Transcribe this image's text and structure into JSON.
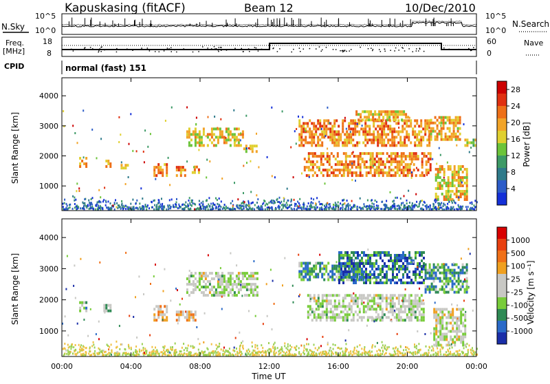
{
  "header": {
    "station": "Kapuskasing (fitACF)",
    "beam": "Beam 12",
    "date": "10/Dec/2010",
    "cpid_label": "CPID",
    "cpid_value": "normal (fast) 151"
  },
  "noise_panel": {
    "left_label": "N.Sky",
    "right_label": "N.Search",
    "left_ticks": [
      "10^5",
      "10^0"
    ],
    "right_ticks": [
      "10^5",
      "10^0"
    ]
  },
  "freq_panel": {
    "left_label_1": "Freq.",
    "left_label_2": "[MHz]",
    "right_label": "Nave",
    "left_ticks": [
      "18",
      "8"
    ],
    "right_ticks": [
      "60",
      "0"
    ]
  },
  "colors": {
    "power_scale": [
      "#1430d8",
      "#2c5cc8",
      "#2e7a8a",
      "#3d9a66",
      "#6cc43a",
      "#e0d030",
      "#f2a428",
      "#ee7018",
      "#e03010",
      "#cc0000"
    ],
    "velocity_scale": [
      "#1a2ea8",
      "#2a6ac8",
      "#2e8a54",
      "#78cc3a",
      "#c8c8c4",
      "#c8c8c4",
      "#f0a020",
      "#f07018",
      "#e84010",
      "#d80000"
    ]
  },
  "chart_data": [
    {
      "type": "heatmap",
      "title": "Power",
      "ylabel": "Slant Range [km]",
      "xlabel": "",
      "xlim": [
        "00:00",
        "00:00"
      ],
      "ylim": [
        180,
        4600
      ],
      "yticks": [
        "1000",
        "2000",
        "3000",
        "4000"
      ],
      "colorbar_label": "Power [dB]",
      "colorbar_ticks": [
        "4",
        "8",
        "12",
        "16",
        "20",
        "24",
        "28"
      ],
      "colorbar_range": [
        0,
        30
      ],
      "regions": [
        {
          "t0": 1.0,
          "t1": 1.4,
          "r0": 1600,
          "r1": 1950,
          "level": 0.45
        },
        {
          "t0": 2.4,
          "t1": 2.8,
          "r0": 1600,
          "r1": 1800,
          "level": 0.45
        },
        {
          "t0": 3.4,
          "t1": 3.8,
          "r0": 1550,
          "r1": 1700,
          "level": 0.4
        },
        {
          "t0": 5.3,
          "t1": 6.1,
          "r0": 1300,
          "r1": 1750,
          "level": 0.6
        },
        {
          "t0": 6.6,
          "t1": 7.1,
          "r0": 1300,
          "r1": 1650,
          "level": 0.5
        },
        {
          "t0": 7.4,
          "t1": 7.9,
          "r0": 1400,
          "r1": 1600,
          "level": 0.5
        },
        {
          "t0": 7.2,
          "t1": 10.5,
          "r0": 2300,
          "r1": 2850,
          "level": 0.3
        },
        {
          "t0": 10.5,
          "t1": 11.3,
          "r0": 2100,
          "r1": 2300,
          "level": 0.3
        },
        {
          "t0": 13.7,
          "t1": 21.3,
          "r0": 2300,
          "r1": 3150,
          "level": 0.55
        },
        {
          "t0": 14.0,
          "t1": 21.3,
          "r0": 1300,
          "r1": 2050,
          "level": 0.55
        },
        {
          "t0": 17.0,
          "t1": 20.0,
          "r0": 3150,
          "r1": 3450,
          "level": 0.4
        },
        {
          "t0": 21.2,
          "t1": 23.1,
          "r0": 2500,
          "r1": 3300,
          "level": 0.4
        },
        {
          "t0": 21.6,
          "t1": 23.5,
          "r0": 500,
          "r1": 1650,
          "level": 0.35
        },
        {
          "t0": 23.3,
          "t1": 24.0,
          "r0": 2300,
          "r1": 2500,
          "level": 0.2
        }
      ]
    },
    {
      "type": "heatmap",
      "title": "Velocity",
      "ylabel": "Slant Range [km]",
      "xlabel": "Time UT",
      "xticks": [
        "00:00",
        "04:00",
        "08:00",
        "12:00",
        "16:00",
        "20:00",
        "00:00"
      ],
      "ylim": [
        180,
        4600
      ],
      "yticks": [
        "1000",
        "2000",
        "3000",
        "4000"
      ],
      "colorbar_label": "Velocity [m s⁻¹]",
      "colorbar_ticks": [
        "1000",
        "500",
        "100",
        "25",
        "-25",
        "-100",
        "-500",
        "-1000"
      ],
      "colorbar_range": [
        -1000,
        1000
      ],
      "regions": [
        {
          "t0": 1.0,
          "t1": 1.4,
          "r0": 1600,
          "r1": 1950,
          "level": -0.3
        },
        {
          "t0": 2.4,
          "t1": 2.8,
          "r0": 1600,
          "r1": 1800,
          "level": -0.2
        },
        {
          "t0": 5.3,
          "t1": 6.1,
          "r0": 1300,
          "r1": 1750,
          "level": 0.4
        },
        {
          "t0": 6.6,
          "t1": 7.9,
          "r0": 1300,
          "r1": 1650,
          "level": 0.3
        },
        {
          "t0": 7.2,
          "t1": 11.3,
          "r0": 2100,
          "r1": 2850,
          "level": 0.0
        },
        {
          "t0": 13.7,
          "t1": 17.5,
          "r0": 2600,
          "r1": 3200,
          "level": -0.4
        },
        {
          "t0": 16.0,
          "t1": 21.0,
          "r0": 2500,
          "r1": 3500,
          "level": -0.6
        },
        {
          "t0": 14.2,
          "t1": 21.0,
          "r0": 1300,
          "r1": 2100,
          "level": 0.0
        },
        {
          "t0": 21.0,
          "t1": 23.5,
          "r0": 2200,
          "r1": 3100,
          "level": -0.4
        },
        {
          "t0": 21.5,
          "t1": 23.4,
          "r0": 500,
          "r1": 1700,
          "level": 0.05
        }
      ]
    }
  ]
}
